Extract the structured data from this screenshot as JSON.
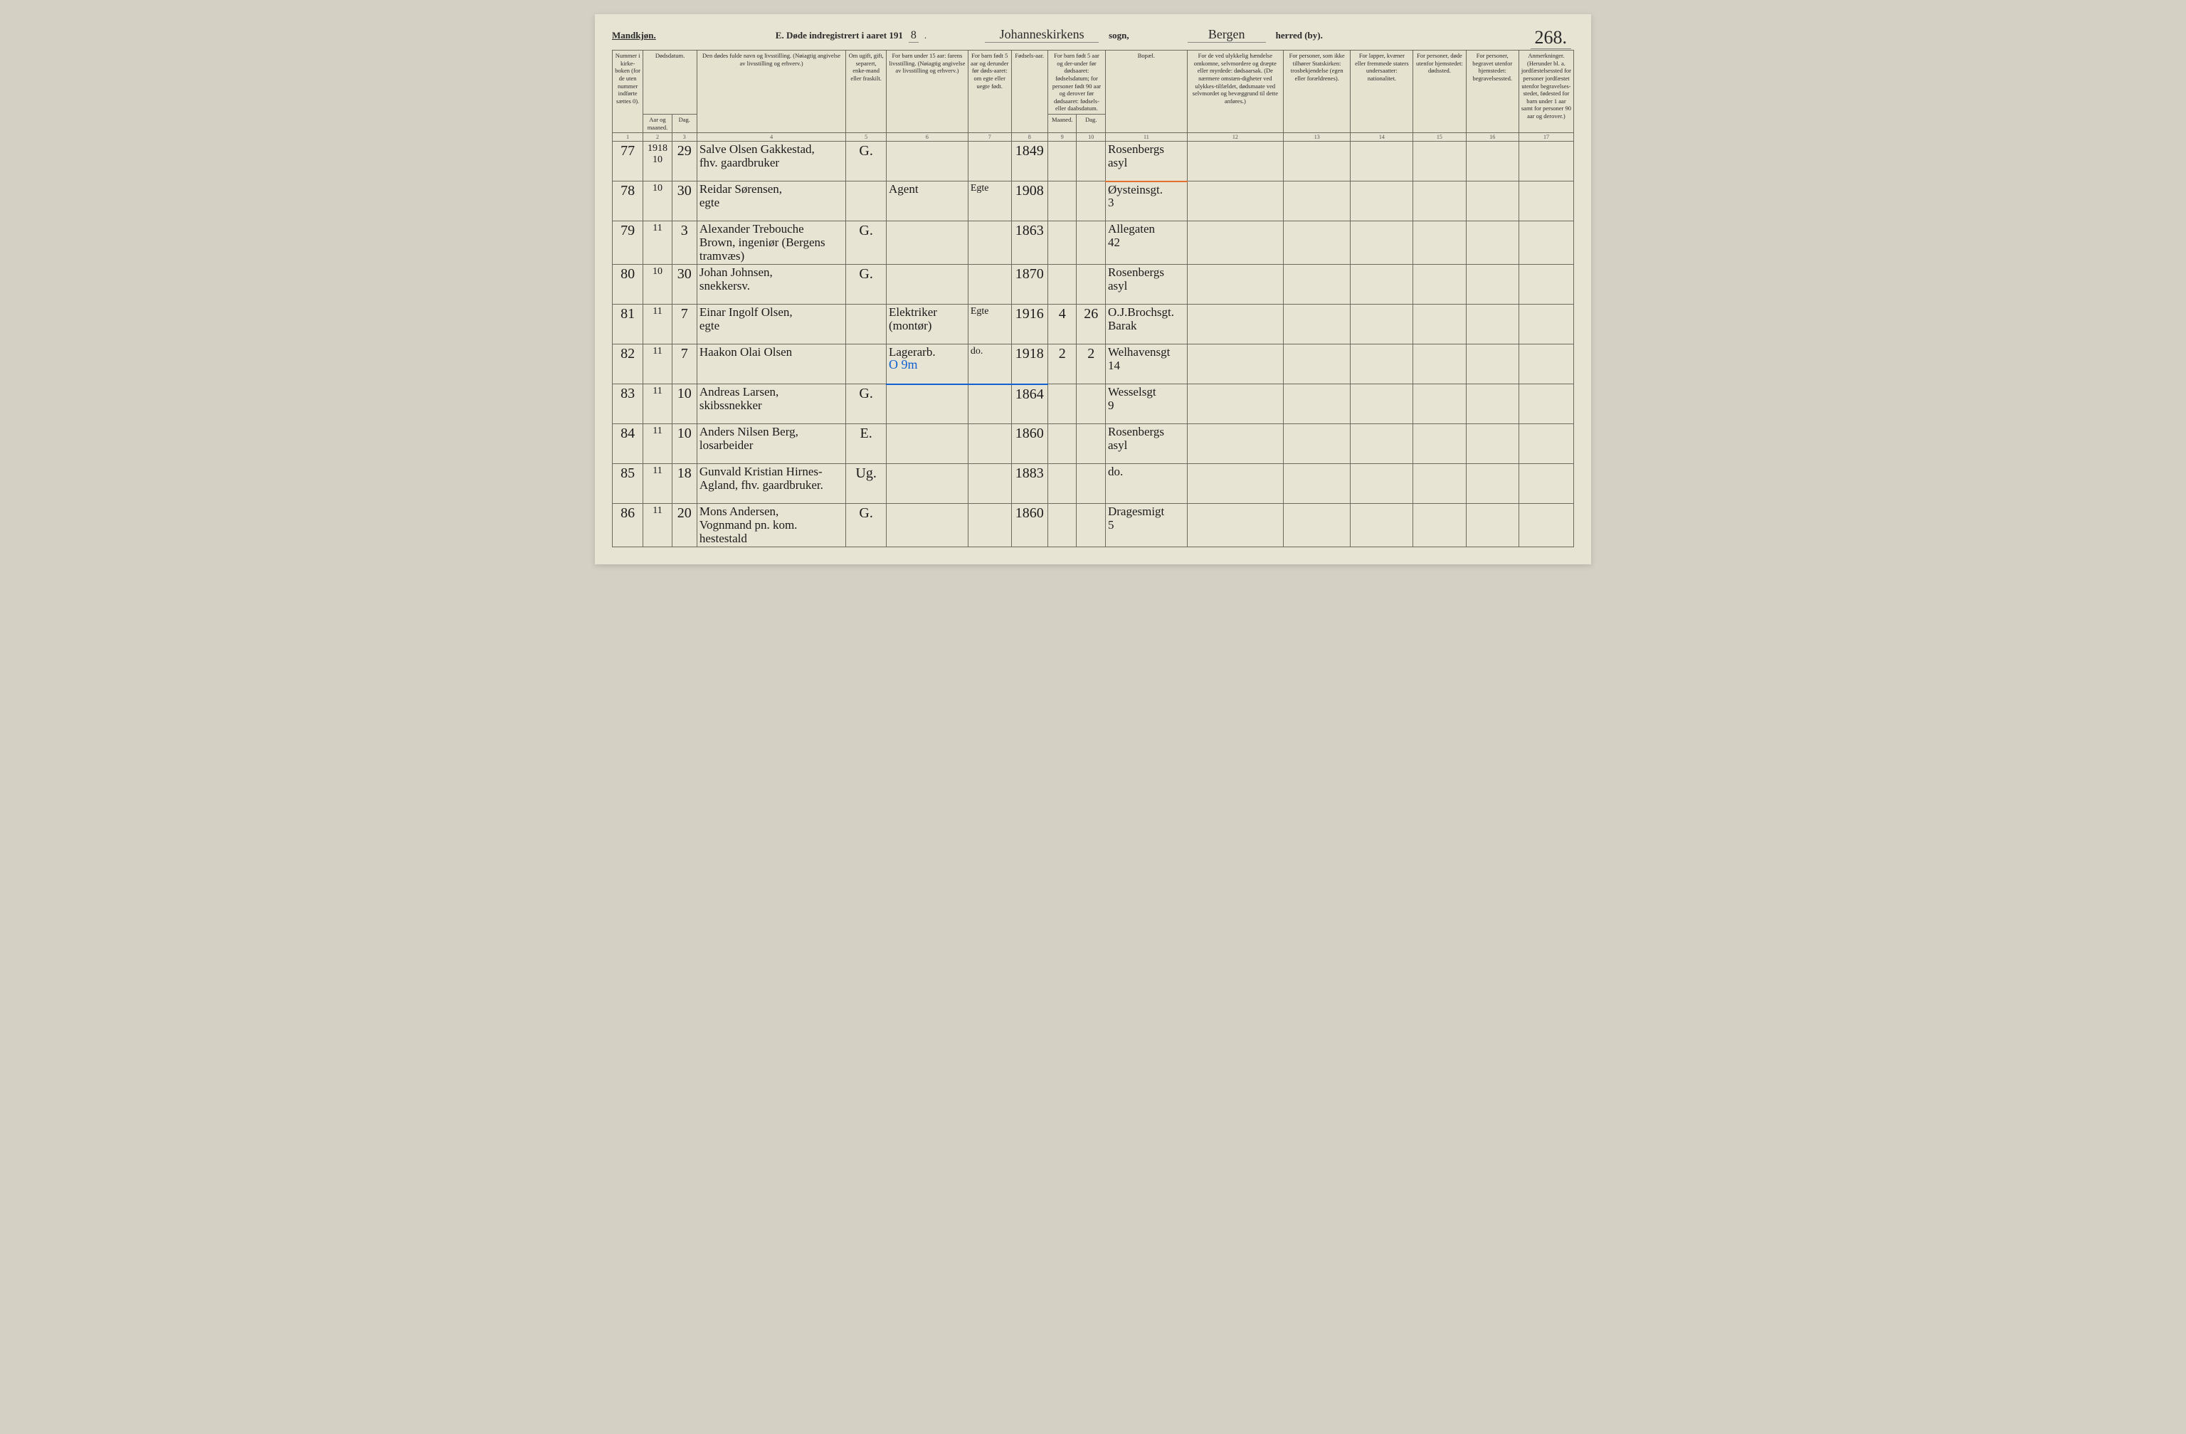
{
  "header": {
    "gender_label": "Mandkjøn.",
    "title_prefix": "E.  Døde indregistrert i aaret 191",
    "year_suffix": "8",
    "title_period": ".",
    "parish_handwritten": "Johanneskirkens",
    "sogn_label": "sogn,",
    "district_handwritten": "Bergen",
    "herred_label": "herred (by).",
    "page_number": "268."
  },
  "columns": {
    "widths_pct": [
      3.2,
      3.0,
      2.6,
      15.5,
      4.2,
      8.5,
      4.5,
      3.8,
      3.0,
      3.0,
      8.5,
      10.0,
      7.0,
      6.5,
      5.5,
      5.5,
      5.7
    ],
    "group_headers": {
      "c1": "Nummer i kirke-boken (for de uten nummer indførte sættes 0).",
      "c23": "Dødsdatum.",
      "c4": "Den dødes fulde navn og livsstilling.\n(Nøiagtig angivelse av livsstilling og erhverv.)",
      "c5": "Om ugift, gift, separert, enke-mand eller fraskilt.",
      "c6": "For barn under 15 aar:\nfarens livsstilling.\n(Nøiagtig angivelse av livsstilling og erhverv.)",
      "c7": "For barn født 5 aar og derunder før døds-aaret: om egte eller uegte født.",
      "c8": "Fødsels-aar.",
      "c910": "For barn født 5 aar og der-under før dødsaaret: fødselsdatum; for personer født 90 aar og derover før dødsaaret: fødsels- eller daabsdatum.",
      "c11": "Bopæl.",
      "c12": "For de ved ulykkelig hændelse omkomne, selvmordere og dræpte eller myrdede: dødsaarsak. (De nærmere omstæn-digheter ved ulykkes-tilfældet, dødsmaate ved selvmordet og bevæggrund til dette anføres.)",
      "c13": "For personer, som ikke tilhører Statskirken: trosbekjendelse (egen eller forældrenes).",
      "c14": "For lapper, kvæner eller fremmede staters undersaatter: nationalitet.",
      "c15": "For personer, døde utenfor hjemstedet: dødssted.",
      "c16": "For personer, begravet utenfor hjemstedet: begravelsessted.",
      "c17": "Anmerkninger. (Herunder bl. a. jordfæstelsessted for personer jordfæstet utenfor begravelses-stedet, fødested for barn under 1 aar samt for personer 90 aar og derover.)"
    },
    "sub_headers": {
      "c2": "Aar og maaned.",
      "c3": "Dag.",
      "c9": "Maaned.",
      "c10": "Dag."
    },
    "numbers": [
      "1",
      "2",
      "3",
      "4",
      "5",
      "6",
      "7",
      "8",
      "9",
      "10",
      "11",
      "12",
      "13",
      "14",
      "15",
      "16",
      "17"
    ]
  },
  "rows": [
    {
      "no": "77",
      "year_month": "1918\n10",
      "day": "29",
      "name": "Salve Olsen Gakkestad,\nfhv. gaardbruker",
      "status": "G.",
      "father": "",
      "legit": "",
      "birth_year": "1849",
      "b_month": "",
      "b_day": "",
      "residence": "Rosenbergs\nasyl",
      "residence_class": "underline-orange"
    },
    {
      "no": "78",
      "year_month": "10",
      "day": "30",
      "name": "Reidar Sørensen,\negte",
      "status": "",
      "father": "Agent",
      "legit": "Egte",
      "birth_year": "1908",
      "b_month": "",
      "b_day": "",
      "residence": "Øysteinsgt.\n3"
    },
    {
      "no": "79",
      "year_month": "11",
      "day": "3",
      "name": "Alexander Trebouche\nBrown, ingeniør (Bergens tramvæs)",
      "status": "G.",
      "father": "",
      "legit": "",
      "birth_year": "1863",
      "b_month": "",
      "b_day": "",
      "residence": "Allegaten\n42"
    },
    {
      "no": "80",
      "year_month": "10",
      "day": "30",
      "name": "Johan Johnsen,\nsnekkersv.",
      "status": "G.",
      "father": "",
      "legit": "",
      "birth_year": "1870",
      "b_month": "",
      "b_day": "",
      "residence": "Rosenbergs\nasyl"
    },
    {
      "no": "81",
      "year_month": "11",
      "day": "7",
      "name": "Einar Ingolf Olsen,\negte",
      "status": "",
      "father": "Elektriker\n(montør)",
      "legit": "Egte",
      "birth_year": "1916",
      "b_month": "4",
      "b_day": "26",
      "residence": "O.J.Brochsgt.\nBarak"
    },
    {
      "no": "82",
      "year_month": "11",
      "day": "7",
      "name": "Haakon Olai Olsen",
      "status": "",
      "father": "Lagerarb.",
      "legit": "do.",
      "birth_year": "1918",
      "b_month": "2",
      "b_day": "2",
      "residence": "Welhavensgt\n14",
      "annotation": "O 9m",
      "row_class": "underline-blue"
    },
    {
      "no": "83",
      "year_month": "11",
      "day": "10",
      "name": "Andreas Larsen,\nskibssnekker",
      "status": "G.",
      "father": "",
      "legit": "",
      "birth_year": "1864",
      "b_month": "",
      "b_day": "",
      "residence": "Wesselsgt\n9"
    },
    {
      "no": "84",
      "year_month": "11",
      "day": "10",
      "name": "Anders Nilsen Berg,\nlosarbeider",
      "status": "E.",
      "father": "",
      "legit": "",
      "birth_year": "1860",
      "b_month": "",
      "b_day": "",
      "residence": "Rosenbergs\nasyl"
    },
    {
      "no": "85",
      "year_month": "11",
      "day": "18",
      "name": "Gunvald Kristian Hirnes-\nAgland, fhv. gaardbruker.",
      "status": "Ug.",
      "father": "",
      "legit": "",
      "birth_year": "1883",
      "b_month": "",
      "b_day": "",
      "residence": "do."
    },
    {
      "no": "86",
      "year_month": "11",
      "day": "20",
      "name": "Mons Andersen,\nVognmand pn. kom. hestestald",
      "status": "G.",
      "father": "",
      "legit": "",
      "birth_year": "1860",
      "b_month": "",
      "b_day": "",
      "residence": "Dragesmigt\n5"
    }
  ],
  "colors": {
    "page_bg": "#e8e4d4",
    "body_bg": "#d4d0c4",
    "border": "#6b6b5f",
    "ink": "#1a1a1a",
    "blue_pencil": "#1060d0",
    "orange_pencil": "#e07030"
  }
}
